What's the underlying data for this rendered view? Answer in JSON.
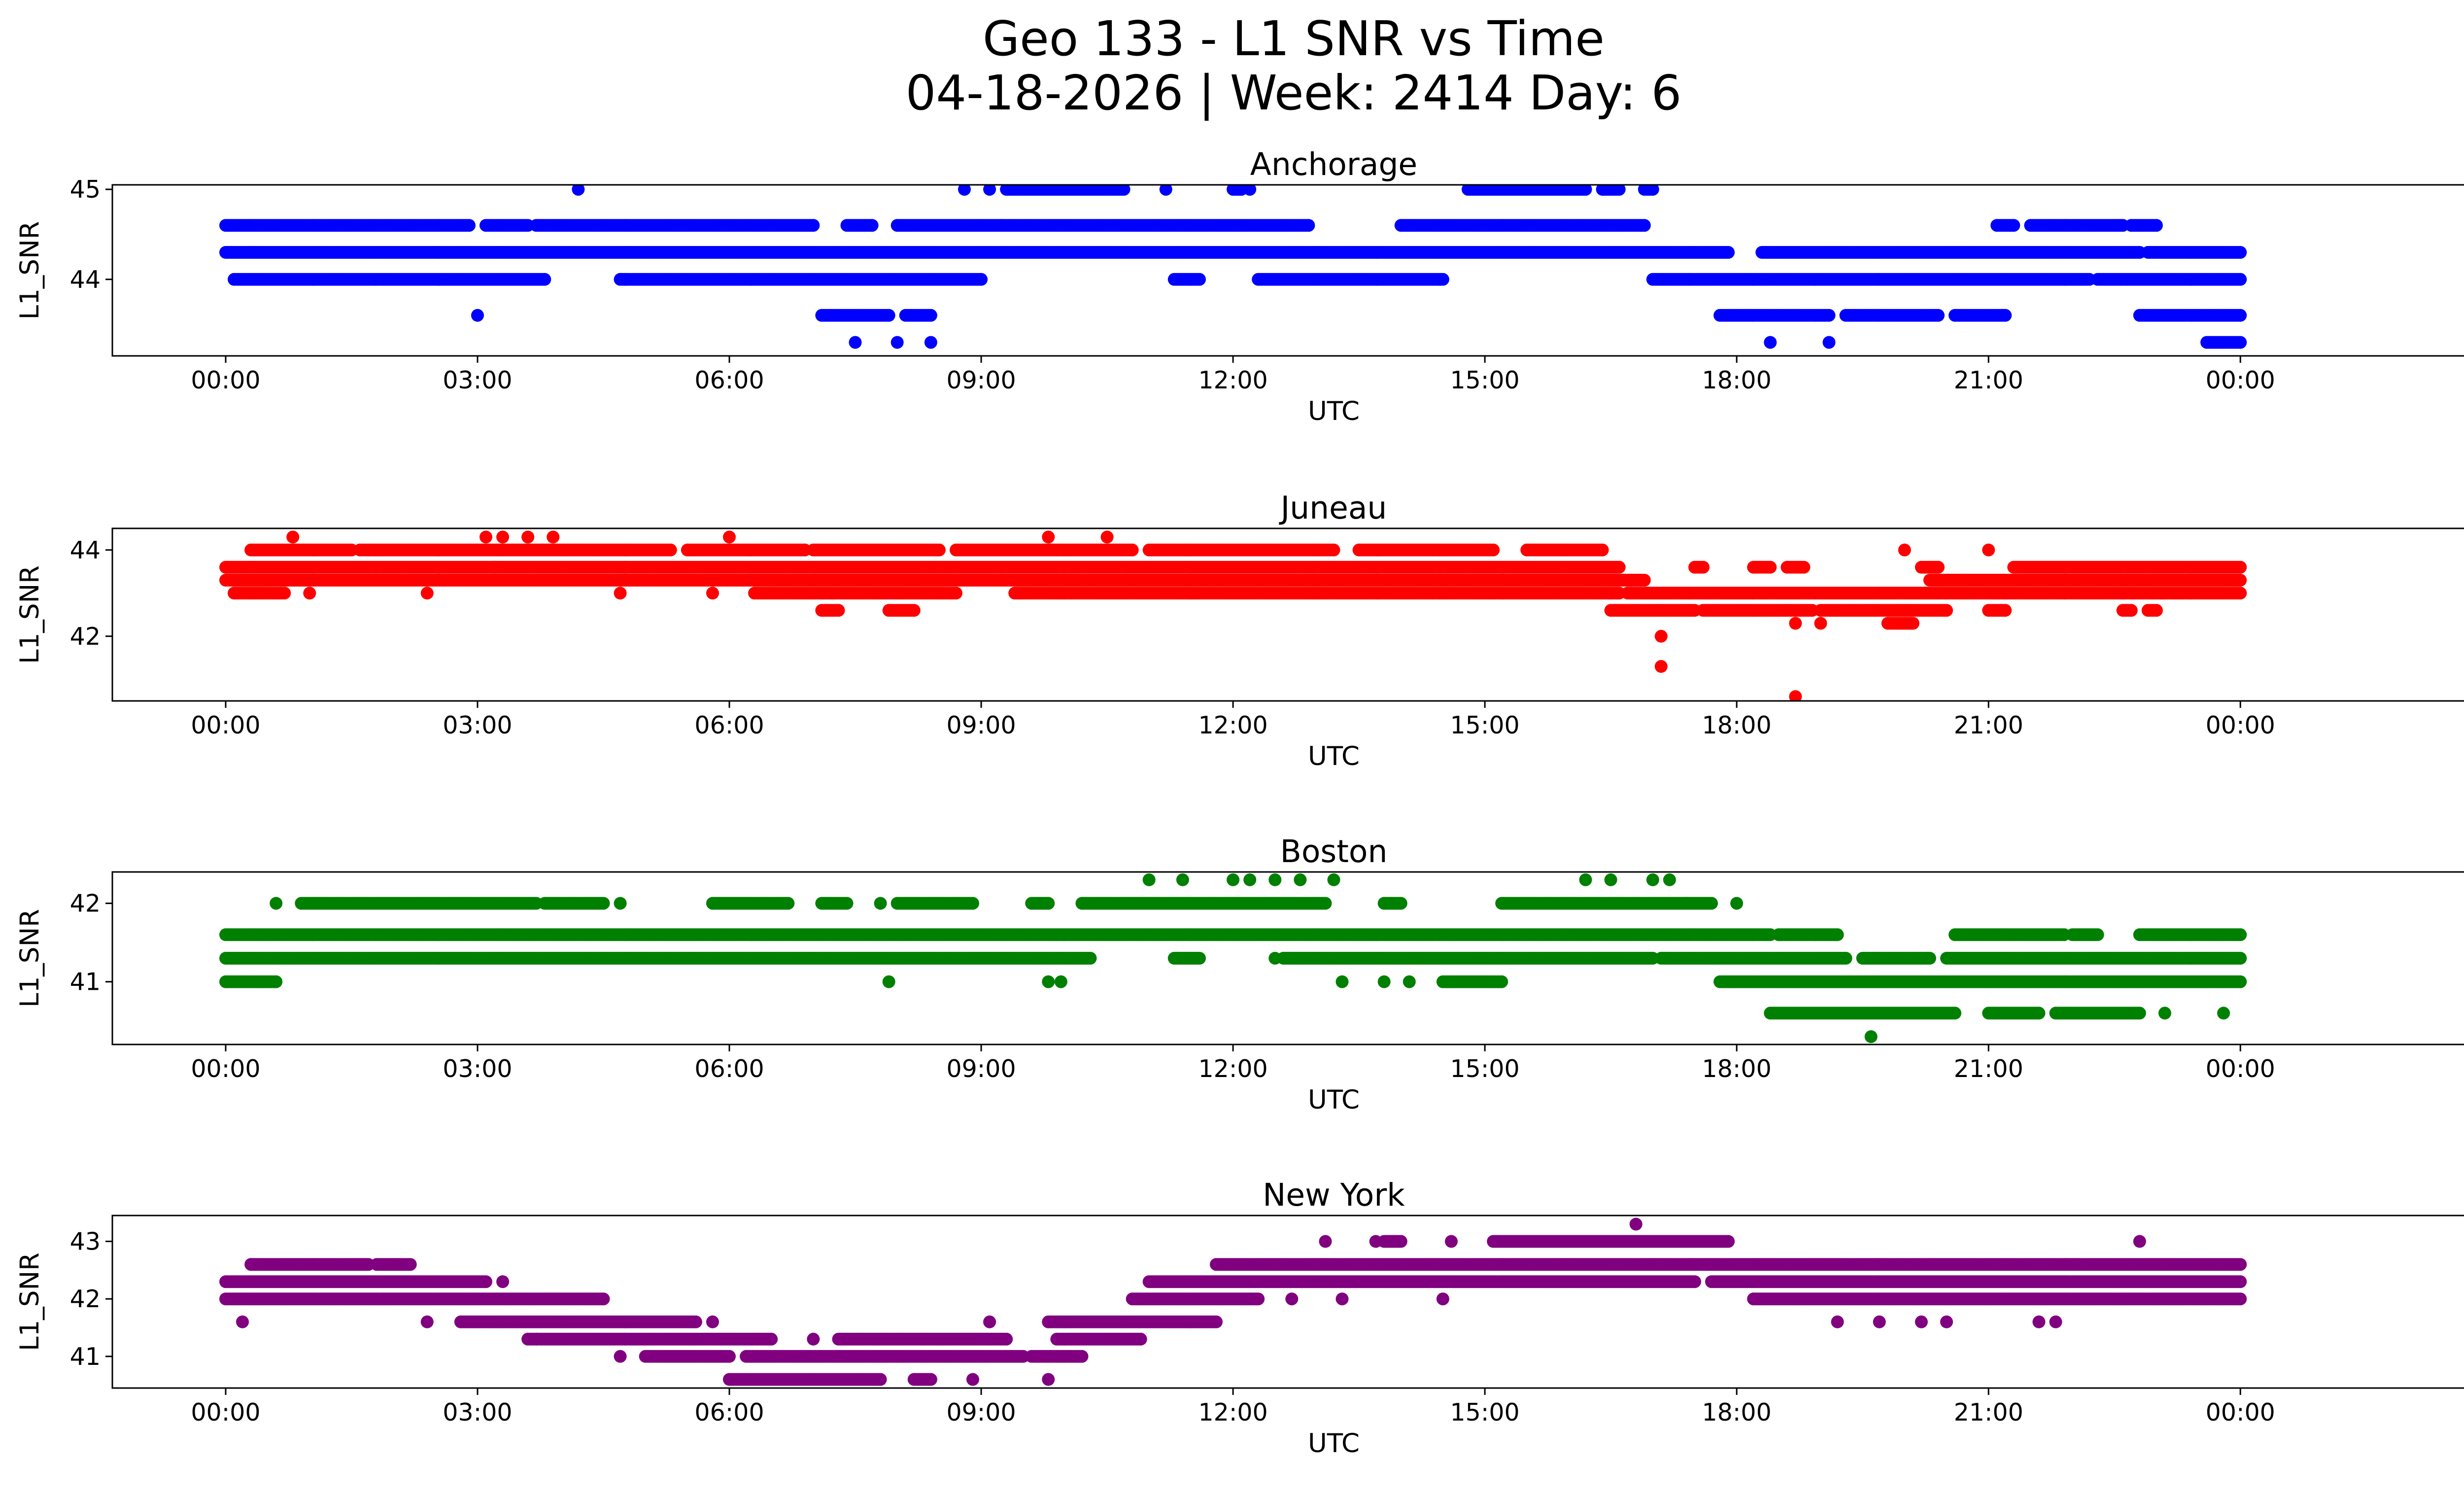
{
  "figure": {
    "title_line1": "Geo 133 - L1 SNR vs Time",
    "title_line2": "04-18-2026 | Week: 2414 Day: 6"
  },
  "chart_data": [
    {
      "type": "scatter",
      "title": "Anchorage",
      "xlabel": "UTC",
      "ylabel": "L1_SNR",
      "color": "#0000ff",
      "xlim": [
        -1.35,
        27.75
      ],
      "ylim": [
        43.15,
        45.05
      ],
      "xticks": [
        0,
        3,
        6,
        9,
        12,
        15,
        18,
        21,
        24
      ],
      "xtick_labels": [
        "00:00",
        "03:00",
        "06:00",
        "09:00",
        "12:00",
        "15:00",
        "18:00",
        "21:00",
        "00:00"
      ],
      "yticks": [
        44,
        45
      ],
      "ytick_labels": [
        "44",
        "45"
      ],
      "levels": [
        {
          "y": 44.6,
          "ranges": [
            [
              0,
              2.9
            ],
            [
              3.1,
              3.6
            ],
            [
              3.7,
              7
            ],
            [
              7.4,
              7.7
            ],
            [
              8,
              12.9
            ],
            [
              14,
              16.9
            ],
            [
              21.1,
              21.3
            ],
            [
              21.5,
              22.6
            ],
            [
              22.7,
              23
            ]
          ]
        },
        {
          "y": 44.3,
          "ranges": [
            [
              0,
              17.9
            ],
            [
              18.3,
              22.8
            ],
            [
              22.9,
              24
            ]
          ]
        },
        {
          "y": 44.0,
          "ranges": [
            [
              0.1,
              3.8
            ],
            [
              4.7,
              9
            ],
            [
              11.3,
              11.6
            ],
            [
              12.3,
              14.5
            ],
            [
              17,
              22.2
            ],
            [
              22.3,
              24
            ]
          ]
        },
        {
          "y": 43.6,
          "ranges": [
            [
              7.1,
              7.9
            ],
            [
              8.1,
              8.4
            ],
            [
              17.8,
              19.1
            ],
            [
              19.3,
              20.4
            ],
            [
              20.6,
              21.2
            ],
            [
              22.8,
              24
            ]
          ]
        },
        {
          "y": 43.3,
          "ranges": [
            [
              23.6,
              24
            ]
          ]
        }
      ],
      "points": [
        {
          "x": 3.0,
          "y": 43.6
        },
        {
          "x": 4.2,
          "y": 45
        },
        {
          "x": 7.5,
          "y": 43.3
        },
        {
          "x": 8.0,
          "y": 43.3
        },
        {
          "x": 8.4,
          "y": 43.3
        },
        {
          "x": 18.4,
          "y": 43.3
        },
        {
          "x": 19.1,
          "y": 43.3
        },
        {
          "x": 12.2,
          "y": 45
        },
        {
          "x": 11.2,
          "y": 45
        },
        {
          "x": 8.8,
          "y": 45
        },
        {
          "x": 9.1,
          "y": 45
        }
      ],
      "top_ranges": {
        "y": 45.0,
        "ranges": [
          [
            9.3,
            10.7
          ],
          [
            12.0,
            12.1
          ],
          [
            14.8,
            16.2
          ],
          [
            16.4,
            16.6
          ],
          [
            16.9,
            17
          ]
        ]
      }
    },
    {
      "type": "scatter",
      "title": "Juneau",
      "xlabel": "UTC",
      "ylabel": "L1_SNR",
      "color": "#ff0000",
      "xlim": [
        -1.35,
        27.75
      ],
      "ylim": [
        40.5,
        44.5
      ],
      "xticks": [
        0,
        3,
        6,
        9,
        12,
        15,
        18,
        21,
        24
      ],
      "xtick_labels": [
        "00:00",
        "03:00",
        "06:00",
        "09:00",
        "12:00",
        "15:00",
        "18:00",
        "21:00",
        "00:00"
      ],
      "yticks": [
        42,
        44
      ],
      "ytick_labels": [
        "42",
        "44"
      ],
      "levels": [
        {
          "y": 44.0,
          "ranges": [
            [
              0.3,
              1.5
            ],
            [
              1.6,
              5.3
            ],
            [
              5.5,
              6.9
            ],
            [
              7.0,
              8.5
            ],
            [
              8.7,
              10.8
            ],
            [
              11.0,
              13.2
            ],
            [
              13.5,
              15.1
            ],
            [
              15.5,
              16.4
            ]
          ]
        },
        {
          "y": 43.6,
          "ranges": [
            [
              0,
              16.6
            ],
            [
              17.5,
              17.6
            ],
            [
              18.2,
              18.4
            ],
            [
              18.6,
              18.8
            ],
            [
              20.2,
              20.4
            ],
            [
              21.3,
              24
            ]
          ]
        },
        {
          "y": 43.3,
          "ranges": [
            [
              0,
              16.9
            ],
            [
              20.3,
              24
            ]
          ]
        },
        {
          "y": 43.0,
          "ranges": [
            [
              0.1,
              0.7
            ],
            [
              6.3,
              8.7
            ],
            [
              9.4,
              16.6
            ],
            [
              16.7,
              24
            ]
          ]
        },
        {
          "y": 42.6,
          "ranges": [
            [
              7.1,
              7.3
            ],
            [
              7.9,
              8.2
            ],
            [
              16.5,
              17.5
            ],
            [
              17.6,
              18.9
            ],
            [
              19.0,
              20.5
            ],
            [
              21.0,
              21.2
            ],
            [
              22.6,
              22.7
            ],
            [
              22.9,
              23.0
            ]
          ]
        },
        {
          "y": 42.3,
          "ranges": [
            [
              19.8,
              20.1
            ]
          ]
        }
      ],
      "points": [
        {
          "x": 0.8,
          "y": 44.3
        },
        {
          "x": 3.1,
          "y": 44.3
        },
        {
          "x": 3.3,
          "y": 44.3
        },
        {
          "x": 3.6,
          "y": 44.3
        },
        {
          "x": 3.9,
          "y": 44.3
        },
        {
          "x": 6.0,
          "y": 44.3
        },
        {
          "x": 9.8,
          "y": 44.3
        },
        {
          "x": 10.5,
          "y": 44.3
        },
        {
          "x": 20.0,
          "y": 44
        },
        {
          "x": 21.0,
          "y": 44
        },
        {
          "x": 17.1,
          "y": 42
        },
        {
          "x": 17.1,
          "y": 41.3
        },
        {
          "x": 18.7,
          "y": 40.6
        },
        {
          "x": 18.7,
          "y": 42.3
        },
        {
          "x": 19.0,
          "y": 42.3
        },
        {
          "x": 2.4,
          "y": 43
        },
        {
          "x": 4.7,
          "y": 43
        },
        {
          "x": 5.8,
          "y": 43
        },
        {
          "x": 1.0,
          "y": 43
        },
        {
          "x": 3.2,
          "y": 43.6
        }
      ]
    },
    {
      "type": "scatter",
      "title": "Boston",
      "xlabel": "UTC",
      "ylabel": "L1_SNR",
      "color": "#008000",
      "xlim": [
        -1.35,
        27.75
      ],
      "ylim": [
        40.2,
        42.4
      ],
      "xticks": [
        0,
        3,
        6,
        9,
        12,
        15,
        18,
        21,
        24
      ],
      "xtick_labels": [
        "00:00",
        "03:00",
        "06:00",
        "09:00",
        "12:00",
        "15:00",
        "18:00",
        "21:00",
        "00:00"
      ],
      "yticks": [
        41,
        42
      ],
      "ytick_labels": [
        "41",
        "42"
      ],
      "levels": [
        {
          "y": 42.0,
          "ranges": [
            [
              0.9,
              3.7
            ],
            [
              3.8,
              4.5
            ],
            [
              5.8,
              6.7
            ],
            [
              7.1,
              7.4
            ],
            [
              8.0,
              8.9
            ],
            [
              9.6,
              9.8
            ],
            [
              10.2,
              13.1
            ],
            [
              13.8,
              14.0
            ],
            [
              15.2,
              17.7
            ]
          ]
        },
        {
          "y": 41.6,
          "ranges": [
            [
              0,
              18.4
            ],
            [
              18.5,
              19.2
            ],
            [
              20.6,
              21.9
            ],
            [
              22.0,
              22.3
            ],
            [
              22.8,
              24
            ]
          ]
        },
        {
          "y": 41.3,
          "ranges": [
            [
              0,
              10.3
            ],
            [
              11.3,
              11.6
            ],
            [
              12.6,
              17.0
            ],
            [
              17.1,
              19.3
            ],
            [
              19.5,
              20.3
            ],
            [
              20.5,
              24
            ]
          ]
        },
        {
          "y": 41.0,
          "ranges": [
            [
              0,
              0.6
            ],
            [
              14.5,
              15.2
            ],
            [
              17.8,
              24
            ]
          ]
        },
        {
          "y": 40.6,
          "ranges": [
            [
              18.4,
              20.6
            ],
            [
              21.0,
              21.6
            ],
            [
              21.8,
              22.8
            ]
          ]
        }
      ],
      "points": [
        {
          "x": 0.6,
          "y": 42
        },
        {
          "x": 4.7,
          "y": 42
        },
        {
          "x": 7.8,
          "y": 42
        },
        {
          "x": 11.0,
          "y": 42.3
        },
        {
          "x": 11.4,
          "y": 42.3
        },
        {
          "x": 12.0,
          "y": 42.3
        },
        {
          "x": 12.2,
          "y": 42.3
        },
        {
          "x": 12.5,
          "y": 42.3
        },
        {
          "x": 12.8,
          "y": 42.3
        },
        {
          "x": 13.2,
          "y": 42.3
        },
        {
          "x": 16.2,
          "y": 42.3
        },
        {
          "x": 16.5,
          "y": 42.3
        },
        {
          "x": 17.0,
          "y": 42.3
        },
        {
          "x": 17.2,
          "y": 42.3
        },
        {
          "x": 7.9,
          "y": 41
        },
        {
          "x": 9.8,
          "y": 41
        },
        {
          "x": 9.95,
          "y": 41
        },
        {
          "x": 13.3,
          "y": 41
        },
        {
          "x": 13.8,
          "y": 41
        },
        {
          "x": 14.1,
          "y": 41
        },
        {
          "x": 12.5,
          "y": 41.3
        },
        {
          "x": 19.6,
          "y": 40.3
        },
        {
          "x": 23.8,
          "y": 40.6
        },
        {
          "x": 23.1,
          "y": 40.6
        },
        {
          "x": 17.4,
          "y": 42
        },
        {
          "x": 18.0,
          "y": 42
        }
      ]
    },
    {
      "type": "scatter",
      "title": "New York",
      "xlabel": "UTC",
      "ylabel": "L1_SNR",
      "color": "#800080",
      "xlim": [
        -1.35,
        27.75
      ],
      "ylim": [
        40.45,
        43.45
      ],
      "xticks": [
        0,
        3,
        6,
        9,
        12,
        15,
        18,
        21,
        24
      ],
      "xtick_labels": [
        "00:00",
        "03:00",
        "06:00",
        "09:00",
        "12:00",
        "15:00",
        "18:00",
        "21:00",
        "00:00"
      ],
      "yticks": [
        41,
        42,
        43
      ],
      "ytick_labels": [
        "41",
        "42",
        "43"
      ],
      "levels": [
        {
          "y": 43.0,
          "ranges": [
            [
              13.8,
              14.0
            ],
            [
              15.1,
              17.9
            ]
          ]
        },
        {
          "y": 42.6,
          "ranges": [
            [
              0.3,
              1.7
            ],
            [
              1.8,
              2.2
            ],
            [
              11.8,
              24
            ]
          ]
        },
        {
          "y": 42.3,
          "ranges": [
            [
              0,
              3.1
            ],
            [
              11.0,
              17.5
            ],
            [
              17.7,
              24
            ]
          ]
        },
        {
          "y": 42.0,
          "ranges": [
            [
              0,
              4.5
            ],
            [
              10.8,
              12.3
            ],
            [
              18.2,
              24
            ]
          ]
        },
        {
          "y": 41.6,
          "ranges": [
            [
              2.8,
              5.6
            ],
            [
              9.8,
              11.8
            ]
          ]
        },
        {
          "y": 41.3,
          "ranges": [
            [
              3.6,
              6.5
            ],
            [
              7.3,
              9.3
            ],
            [
              9.9,
              10.9
            ]
          ]
        },
        {
          "y": 41.0,
          "ranges": [
            [
              5.0,
              6.0
            ],
            [
              6.2,
              9.5
            ],
            [
              9.6,
              10.2
            ]
          ]
        },
        {
          "y": 40.6,
          "ranges": [
            [
              6.0,
              7.8
            ],
            [
              8.2,
              8.4
            ]
          ]
        }
      ],
      "points": [
        {
          "x": 0.2,
          "y": 41.6
        },
        {
          "x": 2.4,
          "y": 41.6
        },
        {
          "x": 3.3,
          "y": 42.3
        },
        {
          "x": 4.7,
          "y": 41
        },
        {
          "x": 13.1,
          "y": 43
        },
        {
          "x": 13.7,
          "y": 43
        },
        {
          "x": 14.6,
          "y": 43
        },
        {
          "x": 16.8,
          "y": 43.3
        },
        {
          "x": 22.8,
          "y": 43
        },
        {
          "x": 12.7,
          "y": 42
        },
        {
          "x": 13.3,
          "y": 42
        },
        {
          "x": 14.5,
          "y": 42
        },
        {
          "x": 19.2,
          "y": 41.6
        },
        {
          "x": 19.7,
          "y": 41.6
        },
        {
          "x": 20.2,
          "y": 41.6
        },
        {
          "x": 20.5,
          "y": 41.6
        },
        {
          "x": 21.6,
          "y": 41.6
        },
        {
          "x": 21.8,
          "y": 41.6
        },
        {
          "x": 9.8,
          "y": 40.6
        },
        {
          "x": 9.1,
          "y": 41.6
        },
        {
          "x": 8.9,
          "y": 40.6
        },
        {
          "x": 3.7,
          "y": 41.3
        },
        {
          "x": 7.0,
          "y": 41.3
        },
        {
          "x": 5.8,
          "y": 41.6
        }
      ]
    }
  ]
}
